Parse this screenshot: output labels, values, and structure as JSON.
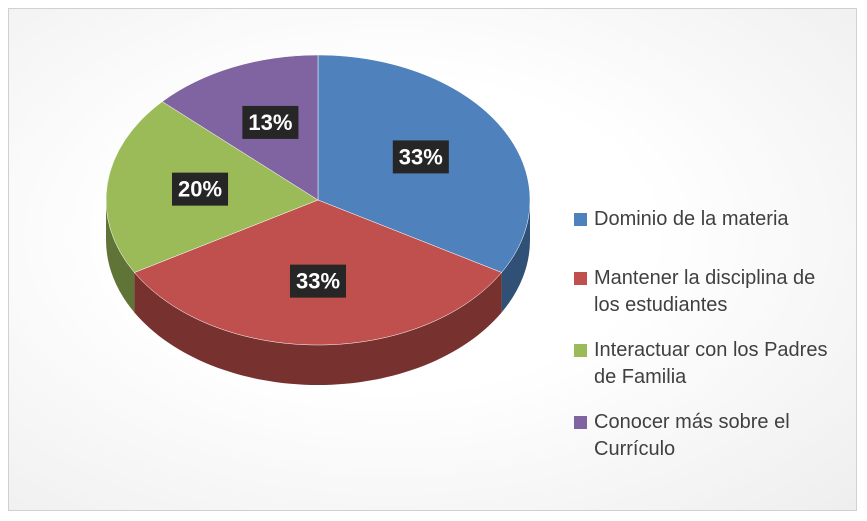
{
  "chart_data": {
    "type": "pie",
    "categories": [
      "Dominio de la materia",
      "Mantener la disciplina de los estudiantes",
      "Interactuar con los Padres de Familia",
      "Conocer más sobre el Currículo"
    ],
    "values": [
      33,
      33,
      20,
      13
    ],
    "value_labels": [
      "33%",
      "33%",
      "20%",
      "13%"
    ],
    "colors": [
      "#4f81bd",
      "#c0504d",
      "#9bbb59",
      "#8064a2"
    ],
    "legend": "right"
  }
}
